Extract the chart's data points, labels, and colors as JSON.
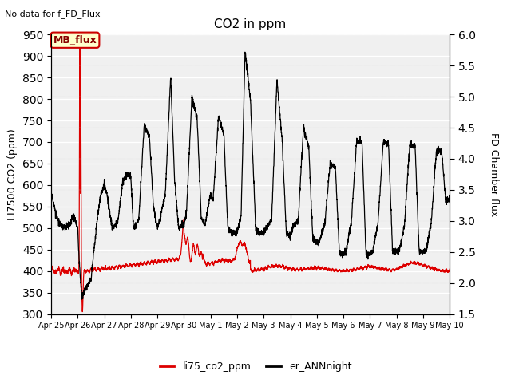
{
  "title": "CO2 in ppm",
  "top_left_text": "No data for f_FD_Flux",
  "legend_label_red": "MB_flux",
  "ylabel_left": "LI7500 CO2 (ppm)",
  "ylabel_right": "FD Chamber flux",
  "ylim_left": [
    300,
    950
  ],
  "ylim_right": [
    1.5,
    6.0
  ],
  "yticks_left": [
    300,
    350,
    400,
    450,
    500,
    550,
    600,
    650,
    700,
    750,
    800,
    850,
    900,
    950
  ],
  "yticks_right": [
    1.5,
    2.0,
    2.5,
    3.0,
    3.5,
    4.0,
    4.5,
    5.0,
    5.5,
    6.0
  ],
  "xtick_labels": [
    "Apr 25",
    "Apr 26",
    "Apr 27",
    "Apr 28",
    "Apr 29",
    "Apr 30",
    "May 1",
    "May 2",
    "May 3",
    "May 4",
    "May 5",
    "May 6",
    "May 7",
    "May 8",
    "May 9",
    "May 10"
  ],
  "line_red_color": "#dd0000",
  "line_black_color": "#000000",
  "legend_bottom_red": "li75_co2_ppm",
  "legend_bottom_black": "er_ANNnight",
  "title_fontsize": 11,
  "label_fontsize": 9,
  "plot_bg_light": "#f0f0f0",
  "plot_bg_dark": "#e0e0e0",
  "mb_box_face": "#ffffcc",
  "mb_box_edge": "#cc0000",
  "mb_text_color": "#880000"
}
